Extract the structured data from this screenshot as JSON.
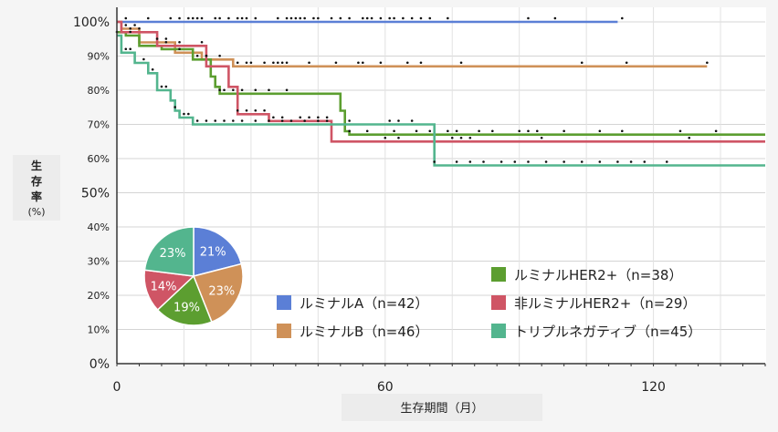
{
  "chart_data": {
    "type": "line",
    "subtype": "kaplan-meier-step",
    "xlabel": "生存期間（月）",
    "ylabel": "生存率(%)",
    "xlim": [
      0,
      145
    ],
    "ylim": [
      0,
      100
    ],
    "x_ticks": [
      0,
      60,
      120
    ],
    "x_tick_labels": [
      "0",
      "60",
      "120"
    ],
    "y_ticks": [
      0,
      10,
      20,
      30,
      40,
      50,
      60,
      70,
      80,
      90,
      100
    ],
    "y_tick_labels": [
      "0%",
      "10%",
      "20%",
      "30%",
      "40%",
      "50%",
      "60%",
      "70%",
      "80%",
      "90%",
      "100%"
    ],
    "grid": true,
    "legend_placement": "bottom-right",
    "series": [
      {
        "name": "ルミナルA（n=42）",
        "color": "#5b7fd6",
        "x": [
          0,
          112
        ],
        "y": [
          100,
          100
        ],
        "censored_x": [
          2,
          7,
          12,
          14,
          16,
          17,
          18,
          19,
          22,
          23,
          25,
          27,
          28,
          29,
          31,
          36,
          38,
          39,
          40,
          41,
          42,
          44,
          45,
          48,
          50,
          52,
          55,
          56,
          57,
          59,
          61,
          62,
          64,
          66,
          68,
          70,
          74,
          92,
          98,
          113
        ]
      },
      {
        "name": "ルミナルB（n=46）",
        "color": "#cf9158",
        "x": [
          0,
          1,
          1,
          5,
          5,
          13,
          13,
          19,
          19,
          26,
          26,
          132
        ],
        "y": [
          100,
          100,
          98,
          98,
          94,
          94,
          91,
          91,
          89,
          89,
          87,
          87
        ],
        "censored_x": [
          2,
          4,
          9,
          11,
          14,
          20,
          23,
          27,
          29,
          30,
          33,
          35,
          36,
          37,
          38,
          43,
          49,
          54,
          55,
          59,
          65,
          68,
          77,
          104,
          114,
          132
        ]
      },
      {
        "name": "ルミナルHER2+（n=38）",
        "color": "#5c9e30",
        "x": [
          0,
          2,
          2,
          5,
          5,
          10,
          10,
          17,
          17,
          21,
          21,
          22,
          22,
          23,
          23,
          50,
          50,
          51,
          51,
          52,
          52,
          145
        ],
        "y": [
          97,
          97,
          96,
          96,
          93,
          93,
          92,
          92,
          89,
          89,
          84,
          84,
          81,
          81,
          79,
          79,
          74,
          74,
          68,
          68,
          67,
          67
        ],
        "censored_x": [
          3,
          18,
          20,
          23,
          24,
          26,
          28,
          31,
          34,
          38,
          52,
          56,
          62,
          67,
          70,
          74,
          76,
          81,
          84,
          90,
          92,
          94,
          100,
          108,
          113,
          126,
          134
        ]
      },
      {
        "name": "非ルミナルHER2+（n=29）",
        "color": "#cf5565",
        "x": [
          0,
          1,
          1,
          9,
          9,
          20,
          20,
          25,
          25,
          27,
          27,
          34,
          34,
          48,
          48,
          145
        ],
        "y": [
          100,
          100,
          97,
          97,
          93,
          93,
          87,
          87,
          81,
          81,
          73,
          73,
          71,
          71,
          65,
          65
        ],
        "censored_x": [
          3,
          5,
          11,
          14,
          19,
          27,
          29,
          31,
          33,
          35,
          37,
          41,
          43,
          45,
          47,
          60,
          63,
          75,
          77,
          79,
          95,
          128
        ]
      },
      {
        "name": "トリプルネガティブ（n=45）",
        "color": "#53b58e",
        "x": [
          0,
          1,
          1,
          4,
          4,
          7,
          7,
          9,
          9,
          12,
          12,
          13,
          13,
          14,
          14,
          17,
          17,
          71,
          71,
          145
        ],
        "y": [
          96,
          96,
          91,
          91,
          88,
          88,
          85,
          85,
          80,
          80,
          77,
          77,
          74,
          74,
          72,
          72,
          70,
          70,
          58,
          58
        ],
        "censored_x": [
          0,
          2,
          3,
          6,
          8,
          10,
          11,
          13,
          15,
          16,
          18,
          20,
          22,
          24,
          26,
          28,
          31,
          34,
          37,
          39,
          42,
          45,
          47,
          52,
          61,
          63,
          66,
          71,
          76,
          79,
          82,
          86,
          89,
          92,
          96,
          100,
          104,
          108,
          112,
          115,
          118,
          123
        ]
      }
    ],
    "pie": {
      "type": "pie",
      "slices": [
        {
          "label": "21%",
          "value": 21,
          "color": "#5b7fd6"
        },
        {
          "label": "23%",
          "value": 23,
          "color": "#cf9158"
        },
        {
          "label": "19%",
          "value": 19,
          "color": "#5c9e30"
        },
        {
          "label": "14%",
          "value": 14,
          "color": "#cf5565"
        },
        {
          "label": "23%",
          "value": 23,
          "color": "#53b58e"
        }
      ]
    }
  }
}
